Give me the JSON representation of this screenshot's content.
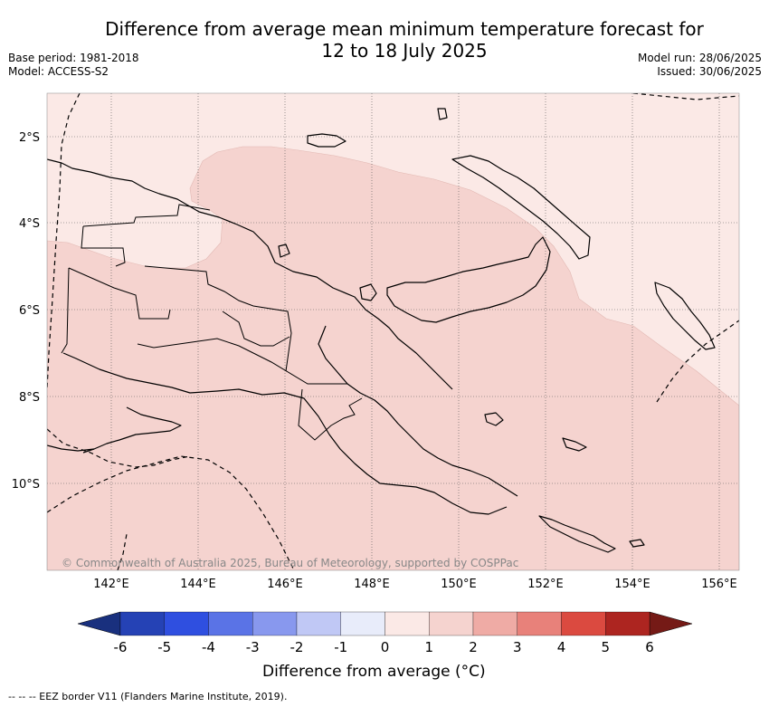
{
  "header": {
    "title_line1": "Difference from average mean minimum temperature forecast for",
    "title_line2": "12 to 18 July 2025",
    "base_period": "Base period: 1981-2018",
    "model": "Model: ACCESS-S2",
    "model_run": "Model run: 28/06/2025",
    "issued": "Issued: 30/06/2025"
  },
  "map": {
    "region": "Papua New Guinea",
    "lat_labels": [
      "2°S",
      "4°S",
      "6°S",
      "8°S",
      "10°S"
    ],
    "lon_labels": [
      "142°E",
      "144°E",
      "146°E",
      "148°E",
      "150°E",
      "152°E",
      "154°E",
      "156°E"
    ],
    "copyright": "© Commonwealth of Australia 2025, Bureau of Meteorology, supported by COSPPac",
    "fill_colors": {
      "bin_0_to_1": "#fbe9e6",
      "bin_1_to_2": "#f5d3cf"
    }
  },
  "colorbar": {
    "ticks": [
      "-6",
      "-5",
      "-4",
      "-3",
      "-2",
      "-1",
      "0",
      "1",
      "2",
      "3",
      "4",
      "5",
      "6"
    ],
    "colors": [
      "#19307e",
      "#2542b5",
      "#2f4fe0",
      "#5a73e6",
      "#8898ee",
      "#c0c8f5",
      "#e8ecfa",
      "#fbe9e6",
      "#f5d3cf",
      "#efaba5",
      "#e8817a",
      "#db4a40",
      "#ad2520",
      "#751a16"
    ],
    "label": "Difference from average (°C)"
  },
  "footnote": "-- -- -- EEZ border V11 (Flanders Marine Institute, 2019)."
}
